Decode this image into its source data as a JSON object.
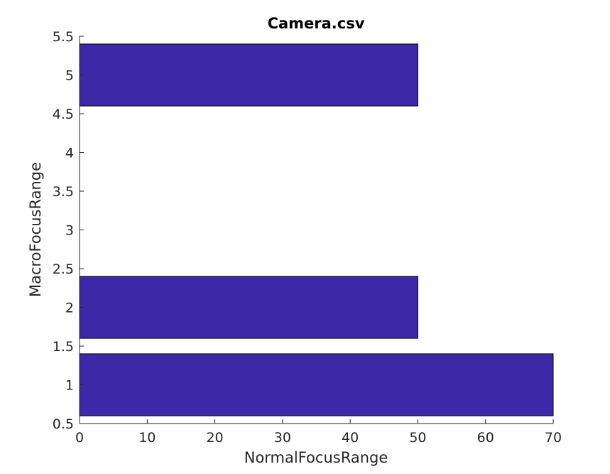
{
  "chart_data": {
    "type": "bar",
    "orientation": "horizontal",
    "title": "Camera.csv",
    "xlabel": "NormalFocusRange",
    "ylabel": "MacroFocusRange",
    "categories": [
      1,
      2,
      5
    ],
    "values": [
      70,
      50,
      50
    ],
    "xlim": [
      0,
      70
    ],
    "ylim": [
      0.5,
      5.5
    ],
    "xticks": [
      0,
      10,
      20,
      30,
      40,
      50,
      60,
      70
    ],
    "yticks": [
      0.5,
      1,
      1.5,
      2,
      2.5,
      3,
      3.5,
      4,
      4.5,
      5,
      5.5
    ],
    "ytick_labels": [
      "0.5",
      "1",
      "1.5",
      "2",
      "2.5",
      "3",
      "3.5",
      "4",
      "4.5",
      "5",
      "5.5"
    ],
    "bar_color": "#3d28a8",
    "grid": false,
    "legend": "none"
  }
}
